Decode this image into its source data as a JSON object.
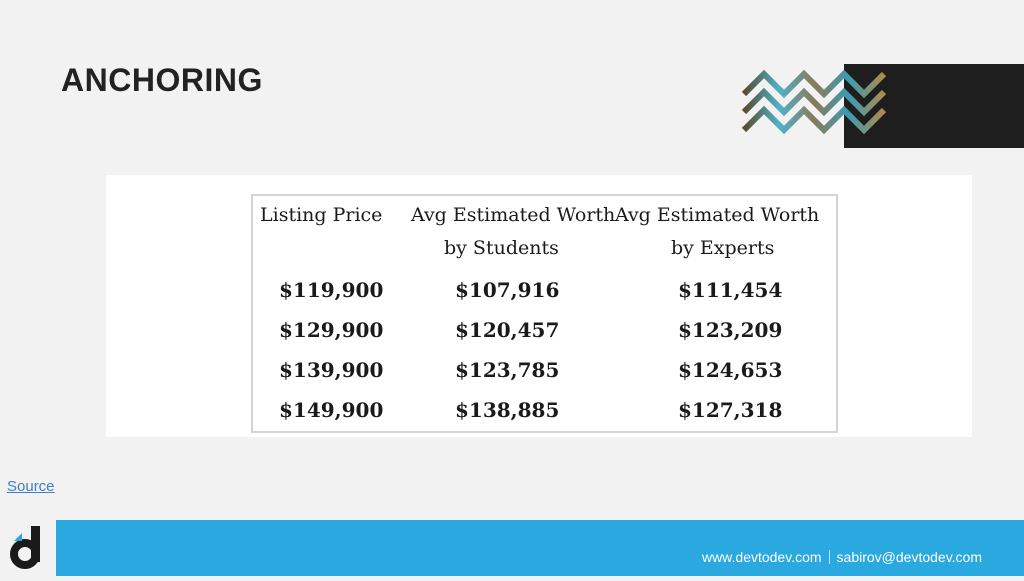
{
  "slide": {
    "title": "ANCHORING",
    "source_link": "Source"
  },
  "table": {
    "headers": [
      {
        "line1": "Listing Price",
        "line2": ""
      },
      {
        "line1": "Avg Estimated Worth",
        "line2": "by Students"
      },
      {
        "line1": "Avg Estimated Worth",
        "line2": "by Experts"
      }
    ],
    "rows": [
      [
        "$119,900",
        "$107,916",
        "$111,454"
      ],
      [
        "$129,900",
        "$120,457",
        "$123,209"
      ],
      [
        "$139,900",
        "$123,785",
        "$124,653"
      ],
      [
        "$149,900",
        "$138,885",
        "$127,318"
      ]
    ]
  },
  "footer": {
    "website": "www.devtodev.com",
    "email": "sabirov@devtodev.com",
    "bar_color": "#29a9e0"
  },
  "logo": {
    "icon": "devtodev-d-logo-icon",
    "colors": [
      "#1a1a1a",
      "#29a9e0"
    ]
  },
  "decoration": {
    "icon": "zigzag-pattern-icon"
  }
}
